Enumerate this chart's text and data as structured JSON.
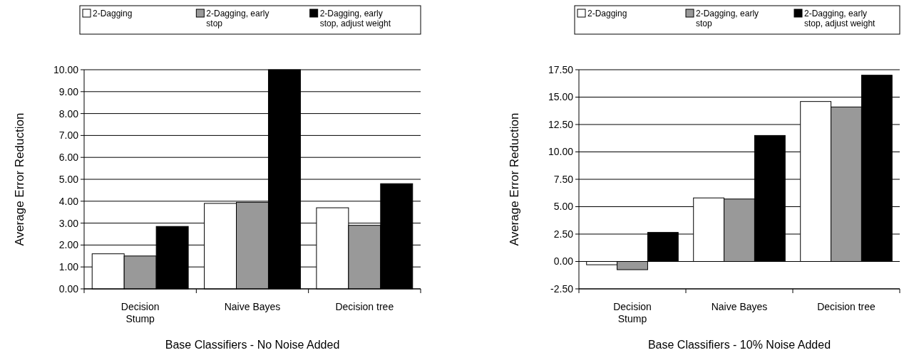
{
  "chart_data": [
    {
      "type": "bar",
      "xlabel": "Base Classifiers - No Noise Added",
      "ylabel": "Average Error Reduction",
      "categories": [
        "Decision Stump",
        "Naive Bayes",
        "Decision tree"
      ],
      "series": [
        {
          "name": "2-Dagging",
          "color": "#ffffff",
          "values": [
            1.6,
            3.9,
            3.7
          ]
        },
        {
          "name": "2-Dagging, early stop",
          "color": "#999999",
          "values": [
            1.5,
            3.95,
            2.9
          ]
        },
        {
          "name": "2-Dagging, early stop, adjust weight",
          "color": "#000000",
          "values": [
            2.85,
            10.0,
            4.8
          ]
        }
      ],
      "ylim": [
        0,
        10
      ],
      "yticks": [
        {
          "value": 0,
          "label": "0.00"
        },
        {
          "value": 1,
          "label": "1.00"
        },
        {
          "value": 2,
          "label": "2.00"
        },
        {
          "value": 3,
          "label": "3.00"
        },
        {
          "value": 4,
          "label": "4.00"
        },
        {
          "value": 5,
          "label": "5.00"
        },
        {
          "value": 6,
          "label": "6.00"
        },
        {
          "value": 7,
          "label": "7.00"
        },
        {
          "value": 8,
          "label": "8.00"
        },
        {
          "value": 9,
          "label": "9.00"
        },
        {
          "value": 10,
          "label": "10.00"
        }
      ],
      "grid": "y",
      "legend": "top"
    },
    {
      "type": "bar",
      "xlabel": "Base Classifiers - 10% Noise Added",
      "ylabel": "Average Error Reduction",
      "categories": [
        "Decision Stump",
        "Naive Bayes",
        "Decision tree"
      ],
      "series": [
        {
          "name": "2-Dagging",
          "color": "#ffffff",
          "values": [
            -0.3,
            5.8,
            14.6
          ]
        },
        {
          "name": "2-Dagging, early stop",
          "color": "#999999",
          "values": [
            -0.75,
            5.7,
            14.1
          ]
        },
        {
          "name": "2-Dagging, early stop, adjust weight",
          "color": "#000000",
          "values": [
            2.65,
            11.5,
            17.0
          ]
        }
      ],
      "ylim": [
        -2.5,
        17.5
      ],
      "yticks": [
        {
          "value": -2.5,
          "label": "-2.50"
        },
        {
          "value": 0,
          "label": "0.00"
        },
        {
          "value": 2.5,
          "label": "2.50"
        },
        {
          "value": 5,
          "label": "5.00"
        },
        {
          "value": 7.5,
          "label": "7.50"
        },
        {
          "value": 10,
          "label": "10.00"
        },
        {
          "value": 12.5,
          "label": "12.50"
        },
        {
          "value": 15,
          "label": "15.00"
        },
        {
          "value": 17.5,
          "label": "17.50"
        }
      ],
      "grid": "y",
      "legend": "top"
    }
  ]
}
